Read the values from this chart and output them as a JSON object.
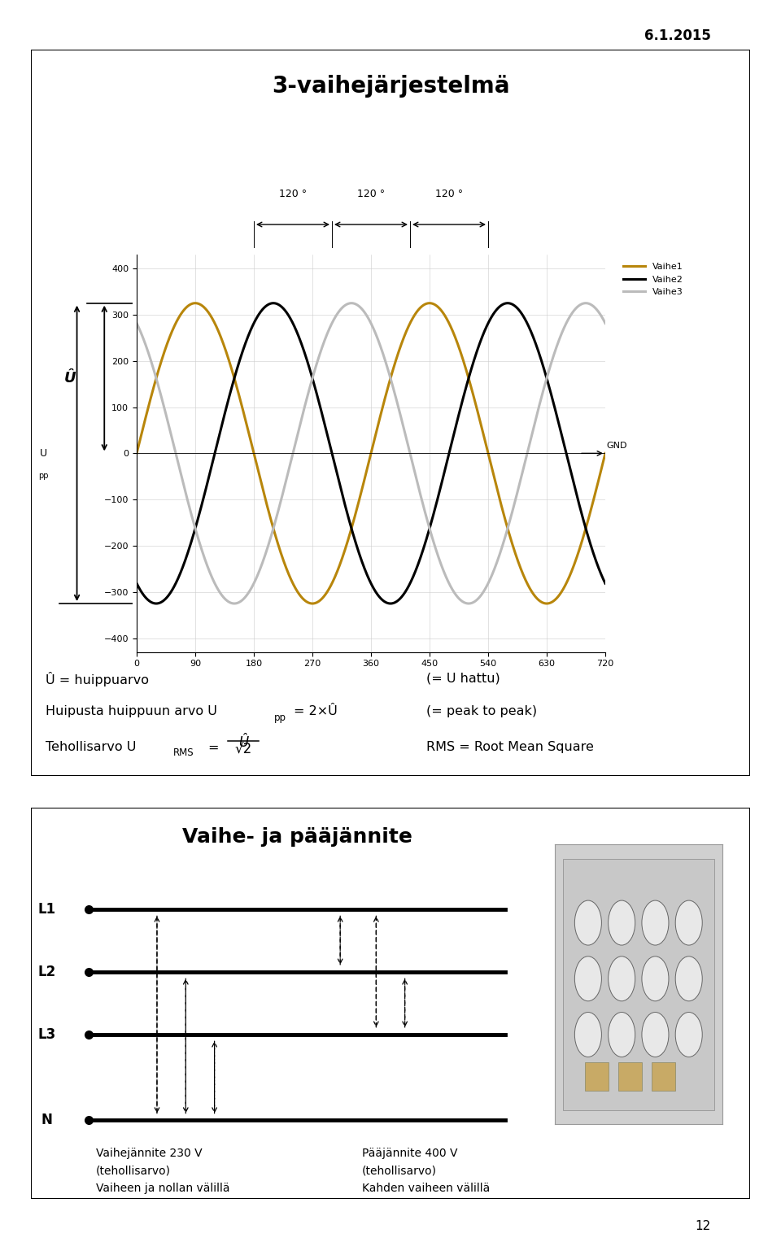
{
  "page_title": "6.1.2015",
  "page_number": "12",
  "box1_title": "3-vaihejärjestelmä",
  "sine_amplitude": 325,
  "sine_x_max": 720,
  "sine_colors": [
    "#b8860b",
    "#000000",
    "#bbbbbb"
  ],
  "sine_labels": [
    "Vaihe1",
    "Vaihe2",
    "Vaihe3"
  ],
  "x_ticks": [
    0,
    90,
    180,
    270,
    360,
    450,
    540,
    630,
    720
  ],
  "y_ticks": [
    -400,
    -300,
    -200,
    -100,
    0,
    100,
    200,
    300,
    400
  ],
  "phase_angles": [
    0,
    120,
    240
  ],
  "box2_title": "Vaihe- ja pääjännite",
  "line_labels": [
    "L1",
    "L2",
    "L3",
    "N"
  ],
  "text_col1": "Vaihejännite 230 V\n(tehollisarvo)\nVaiheen ja nollan välillä",
  "text_col2": "Pääjännite 400 V\n(tehollisarvo)\nKahden vaiheen välillä",
  "bg_color": "#ffffff"
}
